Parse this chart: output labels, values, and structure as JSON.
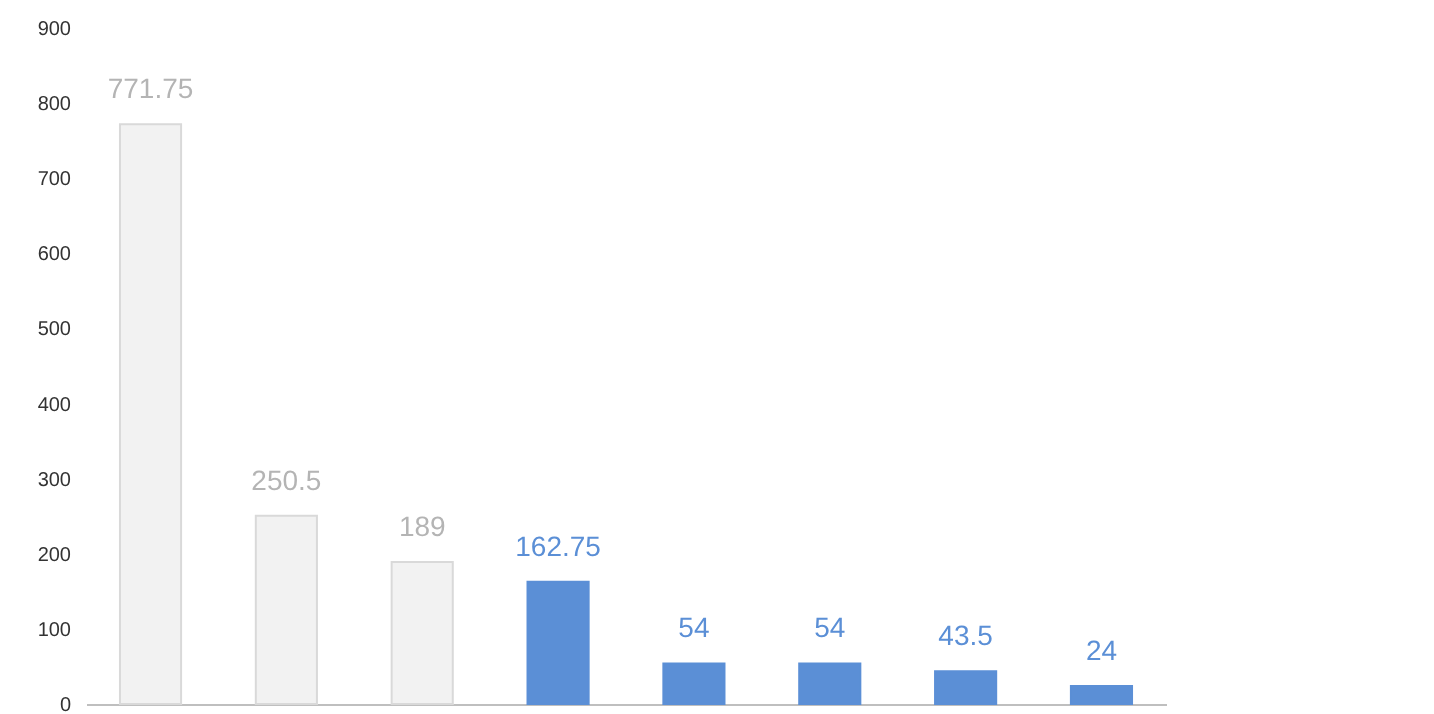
{
  "chart_data": {
    "type": "bar",
    "categories": [
      null,
      null,
      null,
      null,
      null,
      null,
      null,
      null
    ],
    "values": [
      771.75,
      250.5,
      189,
      162.75,
      54,
      54,
      43.5,
      24
    ],
    "colors": [
      "#f2f2f2",
      "#f2f2f2",
      "#f2f2f2",
      "#5b8fd6",
      "#5b8fd6",
      "#5b8fd6",
      "#5b8fd6",
      "#5b8fd6"
    ],
    "ylim": [
      0,
      900
    ],
    "yticks": [
      0,
      100,
      200,
      300,
      400,
      500,
      600,
      700,
      800,
      900
    ],
    "data_labels": true,
    "grid": false
  }
}
